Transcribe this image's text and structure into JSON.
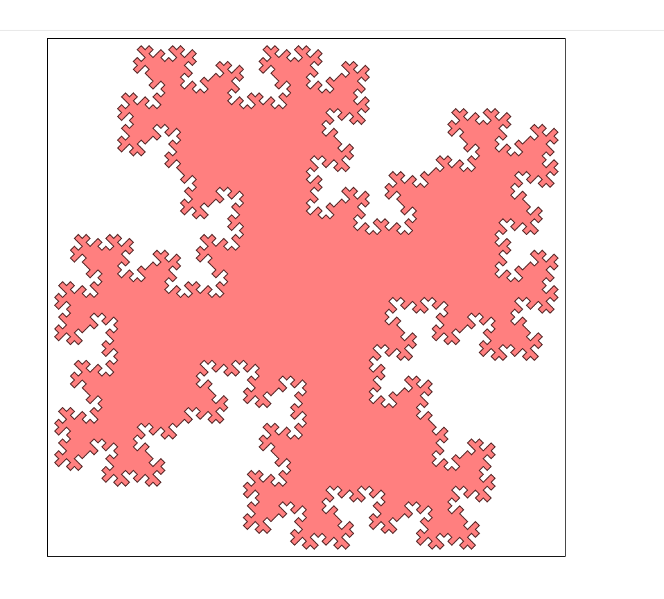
{
  "figure": {
    "kind": "quadratic-koch-island-fractal",
    "fill_color": "#ff7f7f",
    "stroke_color": "#5a2a2a",
    "frame_color": "#000000",
    "divider_color": "#d9d9d9",
    "iterations": 3
  }
}
